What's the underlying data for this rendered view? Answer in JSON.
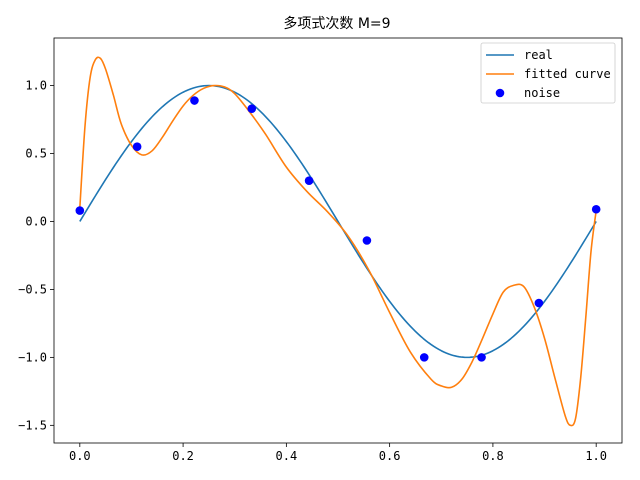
{
  "chart_data": {
    "type": "line",
    "title": "多项式次数 M=9",
    "xlabel": "",
    "ylabel": "",
    "xlim": [
      -0.05,
      1.05
    ],
    "ylim": [
      -1.63,
      1.35
    ],
    "grid": false,
    "legend_position": "top-right",
    "x_ticks": [
      {
        "value": 0.0,
        "label": "0.0"
      },
      {
        "value": 0.2,
        "label": "0.2"
      },
      {
        "value": 0.4,
        "label": "0.4"
      },
      {
        "value": 0.6,
        "label": "0.6"
      },
      {
        "value": 0.8,
        "label": "0.8"
      },
      {
        "value": 1.0,
        "label": "1.0"
      }
    ],
    "y_ticks": [
      {
        "value": -1.5,
        "label": "−1.5"
      },
      {
        "value": -1.0,
        "label": "−1.0"
      },
      {
        "value": -0.5,
        "label": "−0.5"
      },
      {
        "value": 0.0,
        "label": "0.0"
      },
      {
        "value": 0.5,
        "label": "0.5"
      },
      {
        "value": 1.0,
        "label": "1.0"
      }
    ],
    "series": [
      {
        "name": "real",
        "kind": "line",
        "color": "#1f77b4",
        "function": "sin(2*pi*x)"
      },
      {
        "name": "fitted curve",
        "kind": "line",
        "color": "#ff7f0e",
        "x": [
          0.0,
          0.01,
          0.02,
          0.03,
          0.04,
          0.05,
          0.065,
          0.08,
          0.1,
          0.12,
          0.14,
          0.16,
          0.18,
          0.2,
          0.22,
          0.24,
          0.26,
          0.28,
          0.3,
          0.33,
          0.36,
          0.4,
          0.44,
          0.48,
          0.52,
          0.56,
          0.6,
          0.64,
          0.68,
          0.7,
          0.72,
          0.74,
          0.76,
          0.78,
          0.8,
          0.82,
          0.84,
          0.86,
          0.88,
          0.9,
          0.92,
          0.94,
          0.95,
          0.96,
          0.97,
          0.98,
          0.99,
          1.0
        ],
        "y": [
          0.1,
          0.7,
          1.06,
          1.19,
          1.2,
          1.12,
          0.93,
          0.72,
          0.56,
          0.49,
          0.52,
          0.62,
          0.74,
          0.85,
          0.93,
          0.98,
          1.0,
          0.99,
          0.94,
          0.8,
          0.64,
          0.4,
          0.22,
          0.07,
          -0.11,
          -0.36,
          -0.67,
          -0.96,
          -1.16,
          -1.21,
          -1.22,
          -1.16,
          -1.03,
          -0.86,
          -0.68,
          -0.52,
          -0.47,
          -0.48,
          -0.63,
          -0.86,
          -1.15,
          -1.43,
          -1.5,
          -1.45,
          -1.15,
          -0.7,
          -0.22,
          0.08
        ]
      },
      {
        "name": "noise",
        "kind": "scatter",
        "color": "#0000ff",
        "x": [
          0.0,
          0.111,
          0.222,
          0.333,
          0.444,
          0.556,
          0.667,
          0.778,
          0.889,
          1.0
        ],
        "y": [
          0.08,
          0.55,
          0.89,
          0.83,
          0.3,
          -0.14,
          -1.0,
          -1.0,
          -0.6,
          0.09
        ]
      }
    ]
  }
}
